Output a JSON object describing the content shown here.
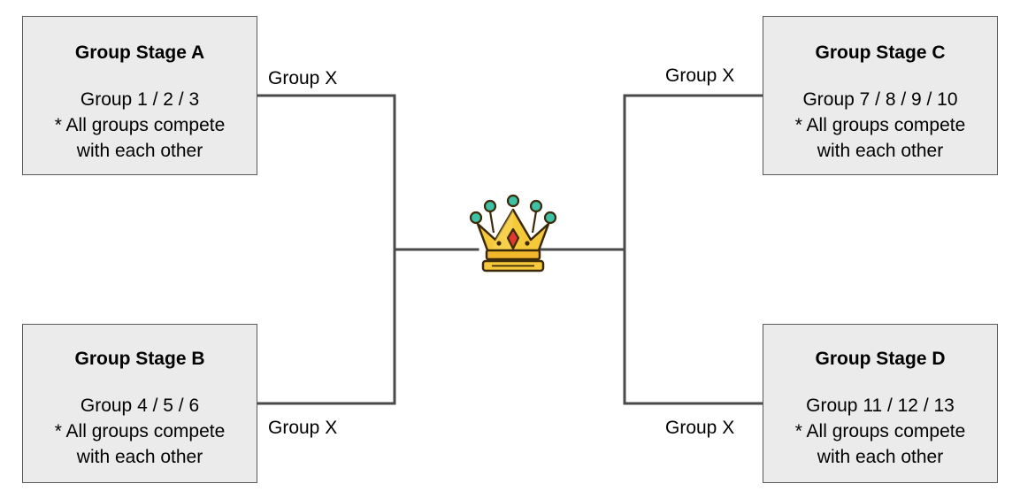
{
  "stages": {
    "a": {
      "title": "Group Stage A",
      "groups": "Group 1 / 2 / 3",
      "note1": "* All groups compete",
      "note2": "with each other"
    },
    "b": {
      "title": "Group Stage B",
      "groups": "Group 4 / 5 / 6",
      "note1": "* All groups compete",
      "note2": "with each other"
    },
    "c": {
      "title": "Group Stage C",
      "groups": "Group 7 / 8 / 9 / 10",
      "note1": "* All groups compete",
      "note2": "with each other"
    },
    "d": {
      "title": "Group Stage D",
      "groups": "Group 11 / 12 / 13",
      "note1": "* All groups compete",
      "note2": "with each other"
    }
  },
  "connector_labels": {
    "a": "Group X",
    "b": "Group X",
    "c": "Group X",
    "d": "Group X"
  },
  "center_icon": "crown-icon",
  "colors": {
    "box_fill": "#ebebeb",
    "box_border": "#595959",
    "line": "#4a4a4a",
    "crown_gold": "#f6c93a",
    "crown_gem": "#e2372f",
    "crown_pearl": "#3fc1a5"
  }
}
